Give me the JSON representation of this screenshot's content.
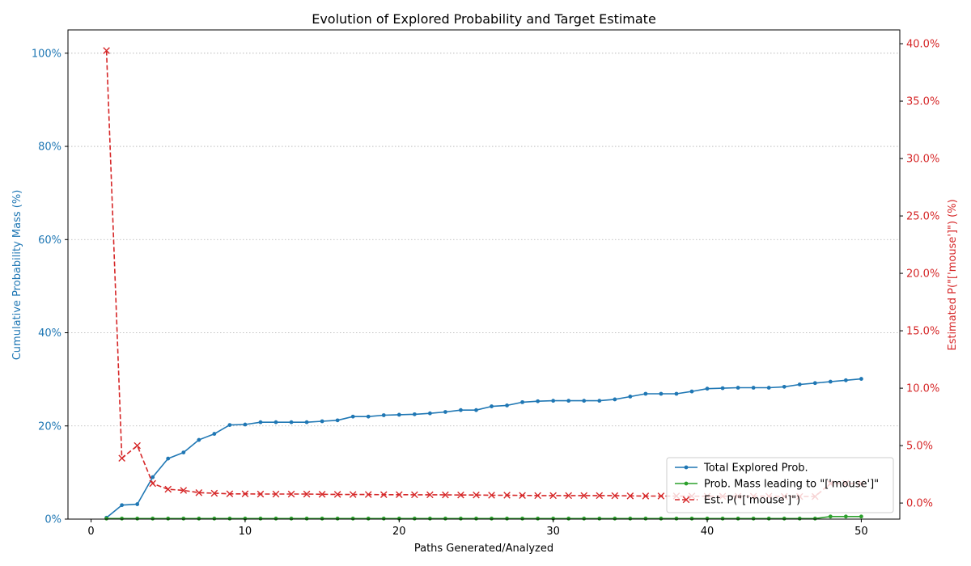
{
  "chart_data": {
    "type": "line",
    "title": "Evolution of Explored Probability and Target Estimate",
    "xlabel": "Paths Generated/Analyzed",
    "ylabel_left": "Cumulative Probability Mass (%)",
    "ylabel_right": "Estimated P(\"['mouse']\") (%)",
    "xlim": [
      -1.5,
      52.5
    ],
    "ylim_left": [
      0,
      105
    ],
    "ylim_right": [
      -1.4,
      41.2
    ],
    "x_ticks": [
      0,
      10,
      20,
      30,
      40,
      50
    ],
    "x_tick_labels": [
      "0",
      "10",
      "20",
      "30",
      "40",
      "50"
    ],
    "y_left_ticks": [
      0,
      20,
      40,
      60,
      80,
      100
    ],
    "y_left_tick_labels": [
      "0%",
      "20%",
      "40%",
      "60%",
      "80%",
      "100%"
    ],
    "y_right_ticks": [
      0,
      5,
      10,
      15,
      20,
      25,
      30,
      35,
      40
    ],
    "y_right_tick_labels": [
      "0.0%",
      "5.0%",
      "10.0%",
      "15.0%",
      "20.0%",
      "25.0%",
      "30.0%",
      "35.0%",
      "40.0%"
    ],
    "grid": "horizontal-dotted",
    "legend_position": "bottom-right",
    "x": [
      1,
      2,
      3,
      4,
      5,
      6,
      7,
      8,
      9,
      10,
      11,
      12,
      13,
      14,
      15,
      16,
      17,
      18,
      19,
      20,
      21,
      22,
      23,
      24,
      25,
      26,
      27,
      28,
      29,
      30,
      31,
      32,
      33,
      34,
      35,
      36,
      37,
      38,
      39,
      40,
      41,
      42,
      43,
      44,
      45,
      46,
      47,
      48,
      49,
      50
    ],
    "series": [
      {
        "name": "Total Explored Prob.",
        "axis": "left",
        "color": "#1f77b4",
        "style": "solid",
        "marker": "dot",
        "values": [
          0.3,
          3.0,
          3.2,
          9.0,
          13.0,
          14.3,
          17.0,
          18.3,
          20.2,
          20.3,
          20.8,
          20.8,
          20.8,
          20.8,
          21.0,
          21.2,
          22.0,
          22.0,
          22.3,
          22.4,
          22.5,
          22.7,
          23.0,
          23.4,
          23.4,
          24.2,
          24.4,
          25.1,
          25.3,
          25.4,
          25.4,
          25.4,
          25.4,
          25.7,
          26.3,
          26.9,
          26.9,
          26.9,
          27.4,
          28.0,
          28.1,
          28.2,
          28.2,
          28.2,
          28.4,
          28.9,
          29.2,
          29.5,
          29.8,
          30.1
        ]
      },
      {
        "name": "Prob. Mass leading to \"['mouse']\"",
        "axis": "left",
        "color": "#2ca02c",
        "style": "solid",
        "marker": "dot",
        "values": [
          0.12,
          0.12,
          0.12,
          0.12,
          0.12,
          0.12,
          0.12,
          0.12,
          0.12,
          0.12,
          0.12,
          0.12,
          0.12,
          0.12,
          0.12,
          0.12,
          0.12,
          0.12,
          0.12,
          0.12,
          0.12,
          0.12,
          0.12,
          0.12,
          0.12,
          0.12,
          0.12,
          0.12,
          0.12,
          0.12,
          0.12,
          0.12,
          0.12,
          0.12,
          0.12,
          0.12,
          0.12,
          0.12,
          0.12,
          0.12,
          0.12,
          0.12,
          0.12,
          0.12,
          0.12,
          0.12,
          0.12,
          0.55,
          0.55,
          0.55
        ]
      },
      {
        "name": "Est. P(\"['mouse']\")",
        "axis": "right",
        "color": "#d62728",
        "style": "dashed",
        "marker": "x",
        "values": [
          39.4,
          3.9,
          5.0,
          1.7,
          1.2,
          1.1,
          0.9,
          0.85,
          0.8,
          0.8,
          0.78,
          0.78,
          0.78,
          0.78,
          0.76,
          0.75,
          0.74,
          0.74,
          0.73,
          0.73,
          0.72,
          0.72,
          0.71,
          0.7,
          0.7,
          0.68,
          0.68,
          0.66,
          0.65,
          0.65,
          0.65,
          0.65,
          0.65,
          0.64,
          0.62,
          0.61,
          0.61,
          0.61,
          0.6,
          0.59,
          0.59,
          0.59,
          0.59,
          0.59,
          0.58,
          0.57,
          0.57,
          1.7,
          1.7,
          1.7
        ]
      }
    ]
  }
}
